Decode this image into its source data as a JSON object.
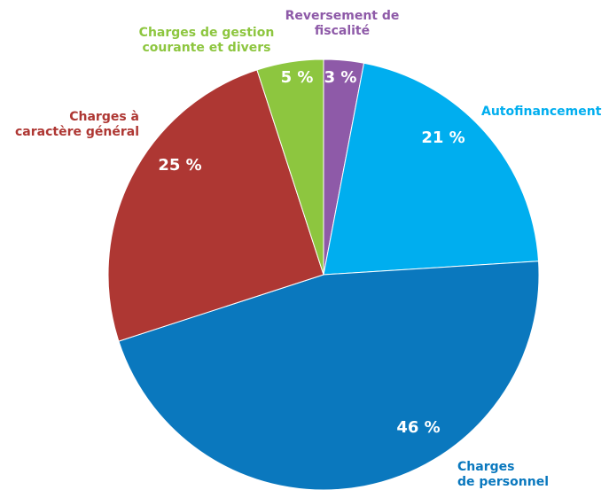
{
  "chart_data": {
    "type": "pie",
    "categories": [
      "Reversement de\nfiscalité",
      "Autofinancement",
      "Charges\nde personnel",
      "Charges à\ncaractère général",
      "Charges de gestion\ncourante et divers"
    ],
    "values": [
      3,
      21,
      46,
      25,
      5
    ],
    "value_labels": [
      "3 %",
      "21 %",
      "46 %",
      "25 %",
      "5 %"
    ],
    "colors": [
      "#8e5aa8",
      "#00aeef",
      "#0a78be",
      "#ae3733",
      "#8dc63f"
    ]
  }
}
